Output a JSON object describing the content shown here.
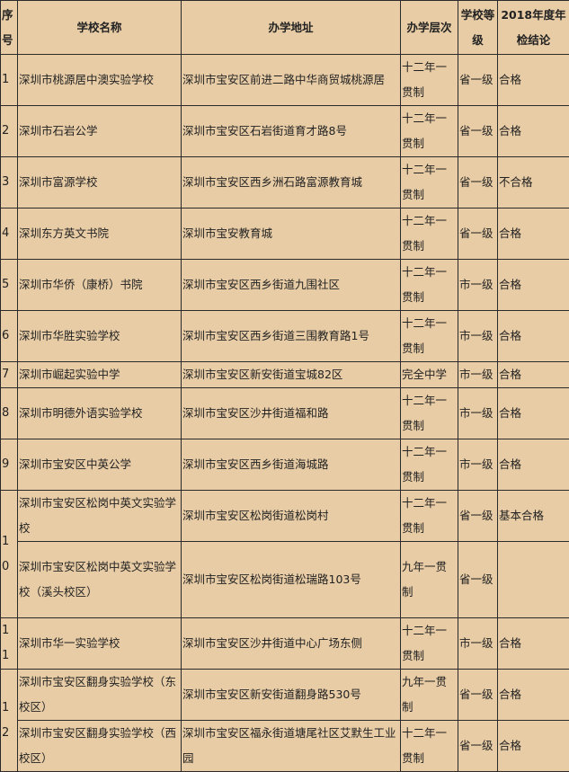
{
  "headers": {
    "no": "序号",
    "name": "学校名称",
    "address": "办学地址",
    "level": "办学层次",
    "grade": "学校等级",
    "result": "2018年度年检结论"
  },
  "rows": [
    {
      "no": "1",
      "name": "深圳市桃源居中澳实验学校",
      "address": "深圳市宝安区前进二路中华商贸城桃源居",
      "level": "十二年一贯制",
      "grade": "省一级",
      "result": "合格"
    },
    {
      "no": "2",
      "name": "深圳市石岩公学",
      "address": "深圳市宝安区石岩街道育才路8号",
      "level": "十二年一贯制",
      "grade": "省一级",
      "result": "合格"
    },
    {
      "no": "3",
      "name": "深圳市富源学校",
      "address": "深圳市宝安区西乡洲石路富源教育城",
      "level": "十二年一贯制",
      "grade": "省一级",
      "result": "不合格"
    },
    {
      "no": "4",
      "name": "深圳东方英文书院",
      "address": "深圳市宝安教育城",
      "level": "十二年一贯制",
      "grade": "省一级",
      "result": "合格"
    },
    {
      "no": "5",
      "name": "深圳市华侨（康桥）书院",
      "address": "深圳市宝安区西乡街道九围社区",
      "level": "十二年一贯制",
      "grade": "市一级",
      "result": "合格"
    },
    {
      "no": "6",
      "name": "深圳市华胜实验学校",
      "address": "深圳市宝安区西乡街道三围教育路1号",
      "level": "十二年一贯制",
      "grade": "市一级",
      "result": "合格"
    },
    {
      "no": "7",
      "name": "深圳市崛起实验中学",
      "address": "深圳市宝安区新安街道宝城82区",
      "level": "完全中学",
      "grade": "市一级",
      "result": "合格"
    },
    {
      "no": "8",
      "name": "深圳市明德外语实验学校",
      "address": "深圳市宝安区沙井街道福和路",
      "level": "十二年一贯制",
      "grade": "市一级",
      "result": "合格"
    },
    {
      "no": "9",
      "name": "深圳市宝安区中英公学",
      "address": "深圳市宝安区西乡街道海城路",
      "level": "十二年一贯制",
      "grade": "市一级",
      "result": "合格"
    },
    {
      "no": "10",
      "name": "深圳市宝安区松岗中英文实验学校",
      "address": "深圳市宝安区松岗街道松岗村",
      "level": "十二年一贯制",
      "grade": "省一级",
      "result": "基本合格"
    },
    {
      "name": "深圳市宝安区松岗中英文实验学校（溪头校区）",
      "address": "深圳市宝安区松岗街道松瑞路103号",
      "level": "九年一贯制",
      "grade": "省一级",
      "result": ""
    },
    {
      "no": "11",
      "name": "深圳市华一实验学校",
      "address": "深圳市宝安区沙井街道中心广场东侧",
      "level": "十二年一贯制",
      "grade": "市一级",
      "result": "合格"
    },
    {
      "no": "12",
      "name": "深圳市宝安区翻身实验学校（东校区）",
      "address": "深圳市宝安区新安街道翻身路530号",
      "level": "九年一贯制",
      "grade": "省一级",
      "result": "合格"
    },
    {
      "name": "深圳市宝安区翻身实验学校（西校区）",
      "address": "深圳市宝安区福永街道塘尾社区艾默生工业园",
      "level": "十二年一贯制",
      "grade": "省一级",
      "result": "合格"
    }
  ]
}
